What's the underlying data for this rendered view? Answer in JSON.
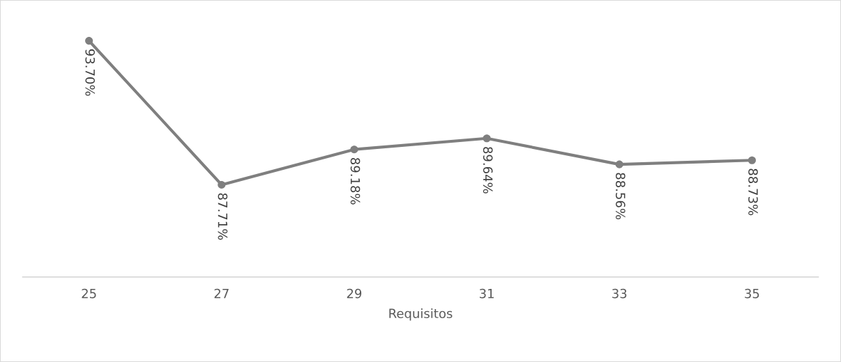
{
  "chart_data": {
    "type": "line",
    "xlabel": "Requisitos",
    "categories": [
      "25",
      "27",
      "29",
      "31",
      "33",
      "35"
    ],
    "values": [
      93.7,
      87.71,
      89.18,
      89.64,
      88.56,
      88.73
    ],
    "value_labels": [
      "93.70%",
      "87.71%",
      "89.18%",
      "89.64%",
      "88.56%",
      "88.73%"
    ],
    "color": "#7f7f7f",
    "marker": "circle",
    "line_style": "solid",
    "tick_labels": "x",
    "grid": false
  }
}
